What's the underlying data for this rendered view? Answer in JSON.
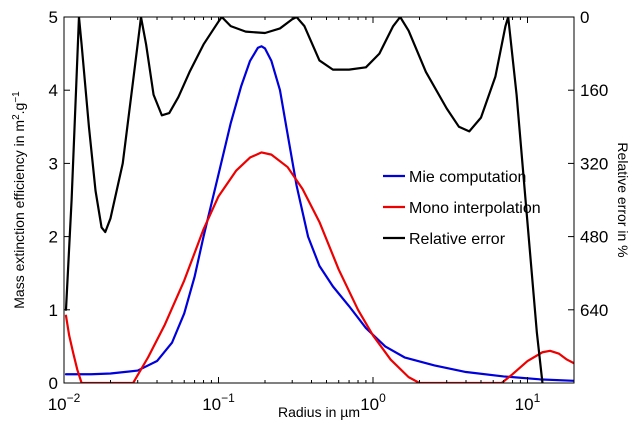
{
  "chart_data": {
    "type": "line",
    "title": "",
    "xlabel_prefix": "Radius in ",
    "xlabel_unit": "µm",
    "ylabel_left_prefix": "Mass extinction efficiency in m",
    "ylabel_left_sup1": "2",
    "ylabel_left_mid": ".g",
    "ylabel_left_sup2": "−1",
    "ylabel_right": "Relative error in %",
    "x_scale": "log",
    "xlim": [
      0.01,
      20
    ],
    "ylim_left": [
      0,
      5
    ],
    "ylim_right": [
      0,
      800
    ],
    "right_axis_inverted": true,
    "grid": false,
    "legend_position": "center-right",
    "x_ticks": [
      {
        "value": 0.01,
        "base": "10",
        "exp": "−2"
      },
      {
        "value": 0.1,
        "base": "10",
        "exp": "−1"
      },
      {
        "value": 1,
        "base": "10",
        "exp": "0"
      },
      {
        "value": 10,
        "base": "10",
        "exp": "1"
      }
    ],
    "y_ticks_left": [
      "0",
      "1",
      "2",
      "3",
      "4",
      "5"
    ],
    "y_ticks_right": [
      "0",
      "160",
      "320",
      "480",
      "640"
    ],
    "series": [
      {
        "name": "Mie computation",
        "color": "#0000dd",
        "axis": "left",
        "points": [
          [
            0.0103,
            0.12
          ],
          [
            0.015,
            0.12
          ],
          [
            0.02,
            0.13
          ],
          [
            0.03,
            0.17
          ],
          [
            0.04,
            0.3
          ],
          [
            0.05,
            0.55
          ],
          [
            0.06,
            0.95
          ],
          [
            0.07,
            1.45
          ],
          [
            0.08,
            2.0
          ],
          [
            0.1,
            2.85
          ],
          [
            0.12,
            3.55
          ],
          [
            0.14,
            4.05
          ],
          [
            0.16,
            4.4
          ],
          [
            0.18,
            4.58
          ],
          [
            0.19,
            4.6
          ],
          [
            0.2,
            4.57
          ],
          [
            0.22,
            4.4
          ],
          [
            0.25,
            4.0
          ],
          [
            0.28,
            3.4
          ],
          [
            0.32,
            2.7
          ],
          [
            0.38,
            2.0
          ],
          [
            0.45,
            1.6
          ],
          [
            0.55,
            1.32
          ],
          [
            0.7,
            1.05
          ],
          [
            0.9,
            0.75
          ],
          [
            1.2,
            0.5
          ],
          [
            1.6,
            0.35
          ],
          [
            2.5,
            0.24
          ],
          [
            4,
            0.15
          ],
          [
            7,
            0.09
          ],
          [
            12,
            0.05
          ],
          [
            20,
            0.03
          ]
        ]
      },
      {
        "name": "Mono interpolation",
        "color": "#ee0000",
        "axis": "left",
        "points": [
          [
            0.0103,
            0.92
          ],
          [
            0.0108,
            0.65
          ],
          [
            0.0115,
            0.4
          ],
          [
            0.0122,
            0.18
          ],
          [
            0.013,
            0.0
          ],
          [
            0.028,
            0.0
          ],
          [
            0.035,
            0.35
          ],
          [
            0.045,
            0.8
          ],
          [
            0.06,
            1.4
          ],
          [
            0.08,
            2.1
          ],
          [
            0.1,
            2.55
          ],
          [
            0.13,
            2.9
          ],
          [
            0.16,
            3.08
          ],
          [
            0.19,
            3.15
          ],
          [
            0.22,
            3.12
          ],
          [
            0.28,
            2.95
          ],
          [
            0.35,
            2.65
          ],
          [
            0.45,
            2.2
          ],
          [
            0.6,
            1.55
          ],
          [
            0.8,
            1.0
          ],
          [
            1.0,
            0.65
          ],
          [
            1.3,
            0.32
          ],
          [
            1.7,
            0.08
          ],
          [
            2.0,
            0.0
          ],
          [
            6.8,
            0.0
          ],
          [
            8,
            0.12
          ],
          [
            10,
            0.3
          ],
          [
            12.5,
            0.42
          ],
          [
            14,
            0.44
          ],
          [
            16,
            0.4
          ],
          [
            18,
            0.32
          ],
          [
            20,
            0.27
          ]
        ]
      },
      {
        "name": "Relative error",
        "color": "#000000",
        "axis": "right",
        "points": [
          [
            0.0103,
            640
          ],
          [
            0.0112,
            400
          ],
          [
            0.012,
            150
          ],
          [
            0.0125,
            0
          ],
          [
            0.013,
            60
          ],
          [
            0.0145,
            240
          ],
          [
            0.016,
            380
          ],
          [
            0.0175,
            460
          ],
          [
            0.0185,
            470
          ],
          [
            0.02,
            440
          ],
          [
            0.024,
            320
          ],
          [
            0.028,
            140
          ],
          [
            0.031,
            20
          ],
          [
            0.0315,
            0
          ],
          [
            0.034,
            60
          ],
          [
            0.038,
            170
          ],
          [
            0.043,
            215
          ],
          [
            0.048,
            210
          ],
          [
            0.055,
            175
          ],
          [
            0.065,
            120
          ],
          [
            0.08,
            60
          ],
          [
            0.1,
            10
          ],
          [
            0.105,
            0
          ],
          [
            0.12,
            20
          ],
          [
            0.15,
            32
          ],
          [
            0.2,
            35
          ],
          [
            0.25,
            25
          ],
          [
            0.3,
            5
          ],
          [
            0.32,
            0
          ],
          [
            0.36,
            20
          ],
          [
            0.45,
            95
          ],
          [
            0.55,
            115
          ],
          [
            0.7,
            115
          ],
          [
            0.9,
            110
          ],
          [
            1.1,
            80
          ],
          [
            1.35,
            20
          ],
          [
            1.5,
            0
          ],
          [
            1.7,
            30
          ],
          [
            2.2,
            120
          ],
          [
            3,
            200
          ],
          [
            3.6,
            240
          ],
          [
            4.2,
            250
          ],
          [
            5,
            220
          ],
          [
            6.2,
            130
          ],
          [
            7.2,
            20
          ],
          [
            7.5,
            0
          ],
          [
            8.5,
            170
          ],
          [
            10,
            450
          ],
          [
            11.5,
            690
          ],
          [
            12.5,
            800
          ]
        ]
      }
    ]
  }
}
